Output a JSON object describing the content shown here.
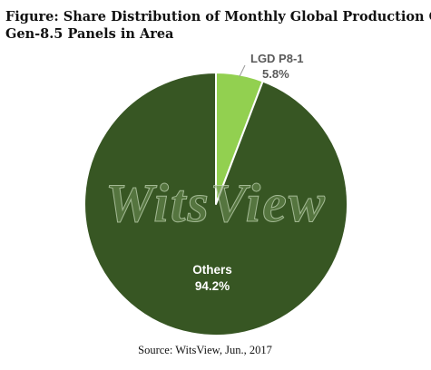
{
  "chart_data": {
    "type": "pie",
    "title_lines": [
      "Figure: Share Distribution of Monthly Global Production Capacity of",
      "Gen-8.5 Panels in Area"
    ],
    "slices": [
      {
        "label": "LGD P8-1",
        "value": 5.8,
        "value_label": "5.8%",
        "color": "#92d050"
      },
      {
        "label": "Others",
        "value": 94.2,
        "value_label": "94.2%",
        "color": "#375623"
      }
    ],
    "watermark": "WitsView",
    "source": "Source: WitsView, Jun., 2017",
    "legend": "none"
  }
}
